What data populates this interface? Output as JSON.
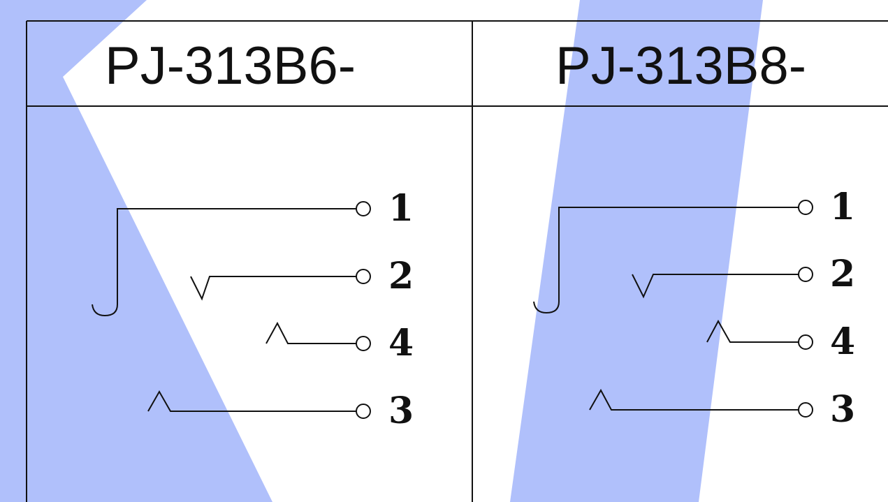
{
  "colors": {
    "background": "#ffffff",
    "watermark": "#b0c0fb",
    "line": "#111111"
  },
  "panels": [
    {
      "title": "PJ-313B6-",
      "pins": [
        "1",
        "2",
        "4",
        "3"
      ]
    },
    {
      "title": "PJ-313B8-",
      "pins": [
        "1",
        "2",
        "4",
        "3"
      ]
    }
  ]
}
